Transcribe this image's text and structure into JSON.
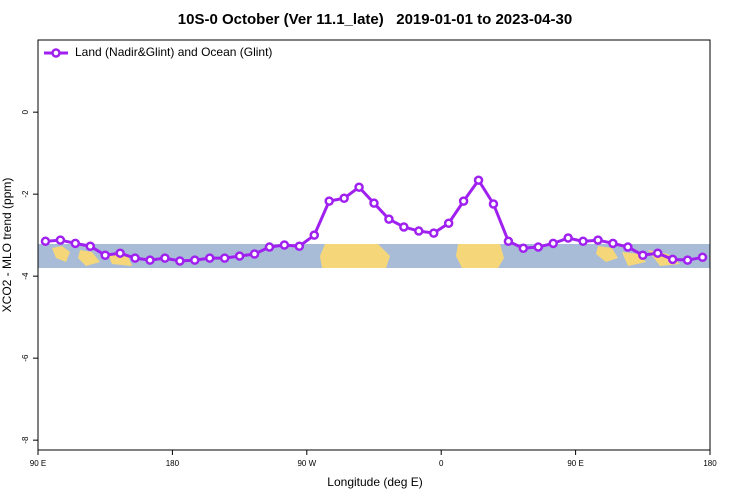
{
  "chart_data": {
    "type": "line",
    "title": "10S-0 October (Ver 11.1_late)   2019-01-01 to 2023-04-30",
    "x_label": "Longitude (deg E)",
    "y_label": "XCO2 - MLO trend (ppm)",
    "x": [
      95,
      105,
      115,
      125,
      135,
      145,
      155,
      165,
      175,
      185,
      195,
      205,
      215,
      225,
      235,
      245,
      255,
      265,
      275,
      285,
      295,
      305,
      315,
      325,
      335,
      345,
      355,
      365,
      375,
      385,
      395,
      405,
      415,
      425,
      435,
      445,
      455,
      465,
      475,
      485,
      495,
      505,
      515,
      525,
      535
    ],
    "series": [
      {
        "name": "Land (Nadir&Glint) and Ocean (Glint)",
        "color": "#a020f0",
        "values": [
          -3.15,
          -3.12,
          -3.2,
          -3.27,
          -3.49,
          -3.44,
          -3.56,
          -3.61,
          -3.56,
          -3.63,
          -3.61,
          -3.56,
          -3.56,
          -3.51,
          -3.46,
          -3.29,
          -3.24,
          -3.27,
          -3.0,
          -2.17,
          -2.1,
          -1.83,
          -2.22,
          -2.61,
          -2.8,
          -2.9,
          -2.95,
          -2.71,
          -2.17,
          -1.66,
          -2.24,
          -3.15,
          -3.32,
          -3.29,
          -3.2,
          -3.07,
          -3.15,
          -3.12,
          -3.2,
          -3.29,
          -3.49,
          -3.44,
          -3.59,
          -3.61,
          -3.54
        ]
      }
    ],
    "xlim": [
      90,
      540
    ],
    "xticks": [
      {
        "value": 90,
        "label": "90 E"
      },
      {
        "value": 180,
        "label": "180"
      },
      {
        "value": 270,
        "label": "90 W"
      },
      {
        "value": 360,
        "label": "0"
      },
      {
        "value": 450,
        "label": "90 E"
      },
      {
        "value": 540,
        "label": "180"
      }
    ],
    "ylim": [
      -8.24,
      1.76
    ],
    "yticks": [
      0,
      -2,
      -4,
      -6,
      -8
    ],
    "legend": "top-left"
  }
}
